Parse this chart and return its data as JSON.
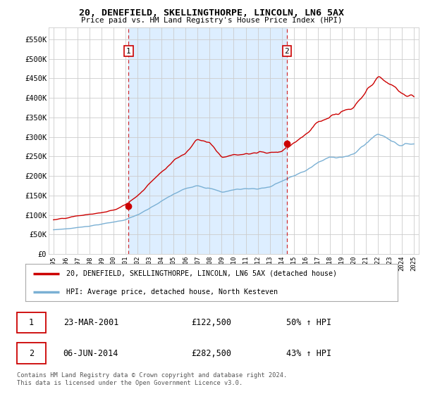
{
  "title": "20, DENEFIELD, SKELLINGTHORPE, LINCOLN, LN6 5AX",
  "subtitle": "Price paid vs. HM Land Registry's House Price Index (HPI)",
  "ylim": [
    0,
    580000
  ],
  "yticks": [
    0,
    50000,
    100000,
    150000,
    200000,
    250000,
    300000,
    350000,
    400000,
    450000,
    500000,
    550000
  ],
  "ytick_labels": [
    "£0",
    "£50K",
    "£100K",
    "£150K",
    "£200K",
    "£250K",
    "£300K",
    "£350K",
    "£400K",
    "£450K",
    "£500K",
    "£550K"
  ],
  "sale1_year": 2001.25,
  "sale1_price": 122500,
  "sale1_label": "1",
  "sale2_year": 2014.42,
  "sale2_price": 282500,
  "sale2_label": "2",
  "legend_line1": "20, DENEFIELD, SKELLINGTHORPE, LINCOLN, LN6 5AX (detached house)",
  "legend_line2": "HPI: Average price, detached house, North Kesteven",
  "table_rows": [
    {
      "num": "1",
      "date": "23-MAR-2001",
      "price": "£122,500",
      "change": "50% ↑ HPI"
    },
    {
      "num": "2",
      "date": "06-JUN-2014",
      "price": "£282,500",
      "change": "43% ↑ HPI"
    }
  ],
  "footer": "Contains HM Land Registry data © Crown copyright and database right 2024.\nThis data is licensed under the Open Government Licence v3.0.",
  "red_color": "#cc0000",
  "blue_color": "#7ab0d4",
  "shade_color": "#ddeeff",
  "grid_color": "#cccccc",
  "background_color": "#ffffff"
}
